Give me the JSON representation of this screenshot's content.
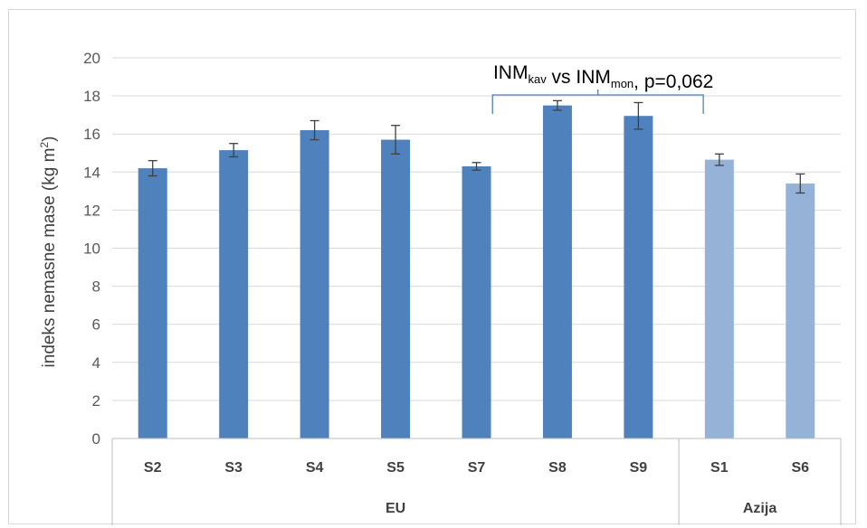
{
  "chart_data": {
    "type": "bar",
    "categories": [
      "S2",
      "S3",
      "S4",
      "S5",
      "S7",
      "S8",
      "S9",
      "S1",
      "S6"
    ],
    "groups": [
      {
        "label": "EU",
        "categories": [
          "S2",
          "S3",
          "S4",
          "S5",
          "S7",
          "S8",
          "S9"
        ]
      },
      {
        "label": "Azija",
        "categories": [
          "S1",
          "S6"
        ]
      }
    ],
    "values": [
      14.2,
      15.15,
      16.2,
      15.7,
      14.3,
      17.5,
      16.95,
      14.65,
      13.4
    ],
    "errors": [
      0.4,
      0.35,
      0.5,
      0.75,
      0.2,
      0.25,
      0.7,
      0.3,
      0.5
    ],
    "colors": [
      "#4f81bd",
      "#4f81bd",
      "#4f81bd",
      "#4f81bd",
      "#4f81bd",
      "#4f81bd",
      "#4f81bd",
      "#95b3d7",
      "#95b3d7"
    ],
    "ylabel": "indeks nemasne mase (kg m",
    "ylabel_sup": "2",
    "ylabel_end": ")",
    "ylim": [
      0,
      20
    ],
    "yticks": [
      0,
      2,
      4,
      6,
      8,
      10,
      12,
      14,
      16,
      18,
      20
    ],
    "grid": true,
    "annotation": {
      "parts": [
        {
          "text": "INM",
          "sub": false
        },
        {
          "text": "kav",
          "sub": true
        },
        {
          "text": " vs INM",
          "sub": false
        },
        {
          "text": "mon",
          "sub": true
        },
        {
          "text": ", p=0,062",
          "sub": false
        }
      ],
      "bracket_from": "S8",
      "bracket_to": "S9"
    }
  }
}
